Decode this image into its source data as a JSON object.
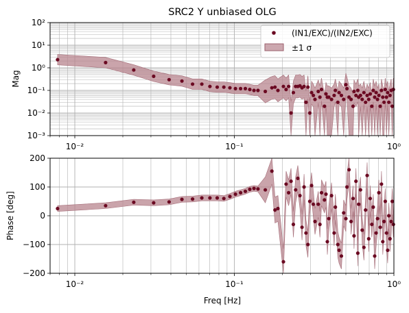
{
  "chart_data": [
    {
      "type": "scatter",
      "title": "SRC2 Y unbiased OLG",
      "xlabel": "",
      "ylabel": "Mag",
      "xscale": "log",
      "yscale": "log",
      "xlim": [
        0.007,
        1.0
      ],
      "ylim": [
        0.001,
        100
      ],
      "grid": "on (major and minor)",
      "legend_position": "top-right",
      "x_tick_labels": [
        "10⁻²",
        "10⁻¹",
        "10⁰"
      ],
      "y_tick_labels": [
        "10⁻³",
        "10⁻²",
        "10⁻¹",
        "10⁰",
        "10¹",
        "10²"
      ],
      "series": [
        {
          "name": "(IN1/EXC)/(IN2/EXC)",
          "marker_color": "#6b0a22",
          "points": [
            [
              0.0078,
              2.3
            ],
            [
              0.0156,
              1.7
            ],
            [
              0.0234,
              0.8
            ],
            [
              0.0312,
              0.42
            ],
            [
              0.039,
              0.3
            ],
            [
              0.0469,
              0.26
            ],
            [
              0.0547,
              0.19
            ],
            [
              0.0625,
              0.19
            ],
            [
              0.0703,
              0.15
            ],
            [
              0.0781,
              0.14
            ],
            [
              0.0859,
              0.14
            ],
            [
              0.0938,
              0.13
            ],
            [
              0.1016,
              0.12
            ],
            [
              0.1094,
              0.12
            ],
            [
              0.1172,
              0.12
            ],
            [
              0.125,
              0.11
            ],
            [
              0.1328,
              0.1
            ],
            [
              0.1406,
              0.1
            ],
            [
              0.1563,
              0.09
            ],
            [
              0.1719,
              0.13
            ],
            [
              0.1797,
              0.14
            ],
            [
              0.1875,
              0.1
            ],
            [
              0.2031,
              0.15
            ],
            [
              0.2109,
              0.11
            ],
            [
              0.2188,
              0.15
            ],
            [
              0.2266,
              0.01
            ],
            [
              0.2344,
              0.08
            ],
            [
              0.2422,
              0.15
            ],
            [
              0.25,
              0.15
            ],
            [
              0.2578,
              0.16
            ],
            [
              0.2656,
              0.13
            ],
            [
              0.2734,
              0.15
            ],
            [
              0.2813,
              0.03
            ],
            [
              0.2891,
              0.14
            ],
            [
              0.2969,
              0.01
            ],
            [
              0.3047,
              0.08
            ],
            [
              0.3125,
              0.06
            ],
            [
              0.3203,
              0.04
            ],
            [
              0.3359,
              0.09
            ],
            [
              0.3438,
              0.05
            ],
            [
              0.3516,
              0.11
            ],
            [
              0.3672,
              0.02
            ],
            [
              0.375,
              0.07
            ],
            [
              0.3828,
              0.05
            ],
            [
              0.3906,
              0.05
            ],
            [
              0.4063,
              0.04
            ],
            [
              0.4219,
              0.06
            ],
            [
              0.4297,
              0.1
            ],
            [
              0.4453,
              0.03
            ],
            [
              0.4531,
              0.08
            ],
            [
              0.4688,
              0.06
            ],
            [
              0.4844,
              0.04
            ],
            [
              0.5,
              0.18
            ],
            [
              0.5078,
              0.12
            ],
            [
              0.5234,
              0.05
            ],
            [
              0.5391,
              0.04
            ],
            [
              0.5547,
              0.02
            ],
            [
              0.5625,
              0.09
            ],
            [
              0.5781,
              0.06
            ],
            [
              0.5938,
              0.1
            ],
            [
              0.6016,
              0.05
            ],
            [
              0.6172,
              0.06
            ],
            [
              0.6328,
              0.04
            ],
            [
              0.6484,
              0.08
            ],
            [
              0.6641,
              0.03
            ],
            [
              0.6797,
              0.06
            ],
            [
              0.6953,
              0.04
            ],
            [
              0.7109,
              0.07
            ],
            [
              0.7266,
              0.02
            ],
            [
              0.7422,
              0.1
            ],
            [
              0.7578,
              0.05
            ],
            [
              0.7734,
              0.08
            ],
            [
              0.7891,
              0.04
            ],
            [
              0.8047,
              0.06
            ],
            [
              0.8203,
              0.02
            ],
            [
              0.8359,
              0.1
            ],
            [
              0.8516,
              0.05
            ],
            [
              0.8672,
              0.03
            ],
            [
              0.8828,
              0.11
            ],
            [
              0.8984,
              0.05
            ],
            [
              0.9141,
              0.08
            ],
            [
              0.9297,
              0.03
            ],
            [
              0.9453,
              0.06
            ],
            [
              0.9609,
              0.1
            ],
            [
              0.9766,
              0.02
            ],
            [
              0.9922,
              0.11
            ]
          ]
        },
        {
          "name": "±1 σ",
          "kind": "band",
          "fill_color": "#b8858f",
          "note_fill_opacity": 0.55
        }
      ]
    },
    {
      "type": "scatter",
      "title": "",
      "xlabel": "Freq [Hz]",
      "ylabel": "Phase [deg]",
      "xscale": "log",
      "xlim": [
        0.007,
        1.0
      ],
      "ylim": [
        -200,
        200
      ],
      "grid": "on (major and minor)",
      "x_tick_labels": [
        "10⁻²",
        "10⁻¹",
        "10⁰"
      ],
      "y_ticks": [
        -200,
        -100,
        0,
        100,
        200
      ],
      "y_tick_labels": [
        "−200",
        "−100",
        "0",
        "100",
        "200"
      ],
      "series": [
        {
          "points": [
            [
              0.0078,
              25
            ],
            [
              0.0156,
              35
            ],
            [
              0.0234,
              47
            ],
            [
              0.0312,
              45
            ],
            [
              0.039,
              48
            ],
            [
              0.0469,
              57
            ],
            [
              0.0547,
              58
            ],
            [
              0.0625,
              62
            ],
            [
              0.0703,
              62
            ],
            [
              0.0781,
              62
            ],
            [
              0.0859,
              60
            ],
            [
              0.0938,
              67
            ],
            [
              0.1016,
              75
            ],
            [
              0.1094,
              80
            ],
            [
              0.1172,
              85
            ],
            [
              0.125,
              92
            ],
            [
              0.1328,
              95
            ],
            [
              0.1406,
              93
            ],
            [
              0.1563,
              90
            ],
            [
              0.1719,
              155
            ],
            [
              0.1797,
              20
            ],
            [
              0.1875,
              25
            ],
            [
              0.2031,
              -160
            ],
            [
              0.2109,
              110
            ],
            [
              0.2188,
              80
            ],
            [
              0.2266,
              120
            ],
            [
              0.2344,
              -30
            ],
            [
              0.2422,
              90
            ],
            [
              0.25,
              130
            ],
            [
              0.2578,
              70
            ],
            [
              0.2656,
              -40
            ],
            [
              0.2734,
              100
            ],
            [
              0.2813,
              -60
            ],
            [
              0.2891,
              -100
            ],
            [
              0.2969,
              50
            ],
            [
              0.3047,
              105
            ],
            [
              0.3125,
              40
            ],
            [
              0.3203,
              -20
            ],
            [
              0.3359,
              40
            ],
            [
              0.3438,
              -30
            ],
            [
              0.3516,
              80
            ],
            [
              0.3672,
              55
            ],
            [
              0.375,
              75
            ],
            [
              0.3828,
              -90
            ],
            [
              0.3906,
              -10
            ],
            [
              0.4063,
              70
            ],
            [
              0.4219,
              -60
            ],
            [
              0.4297,
              30
            ],
            [
              0.4453,
              -100
            ],
            [
              0.4531,
              -120
            ],
            [
              0.4688,
              -140
            ],
            [
              0.4844,
              10
            ],
            [
              0.5,
              -10
            ],
            [
              0.5078,
              100
            ],
            [
              0.5234,
              160
            ],
            [
              0.5391,
              -20
            ],
            [
              0.5547,
              60
            ],
            [
              0.5625,
              -70
            ],
            [
              0.5781,
              120
            ],
            [
              0.5938,
              -130
            ],
            [
              0.6016,
              40
            ],
            [
              0.6172,
              90
            ],
            [
              0.6328,
              -50
            ],
            [
              0.6484,
              -110
            ],
            [
              0.6641,
              20
            ],
            [
              0.6797,
              140
            ],
            [
              0.6953,
              -80
            ],
            [
              0.7109,
              60
            ],
            [
              0.7266,
              -30
            ],
            [
              0.7422,
              30
            ],
            [
              0.7578,
              -140
            ],
            [
              0.7734,
              -60
            ],
            [
              0.7891,
              -10
            ],
            [
              0.8047,
              80
            ],
            [
              0.8203,
              -40
            ],
            [
              0.8359,
              110
            ],
            [
              0.8516,
              -90
            ],
            [
              0.8672,
              -20
            ],
            [
              0.8828,
              50
            ],
            [
              0.8984,
              -60
            ],
            [
              0.9141,
              -120
            ],
            [
              0.9297,
              0
            ],
            [
              0.9453,
              -80
            ],
            [
              0.9609,
              -20
            ],
            [
              0.9766,
              50
            ],
            [
              0.9922,
              -30
            ]
          ]
        }
      ]
    }
  ]
}
